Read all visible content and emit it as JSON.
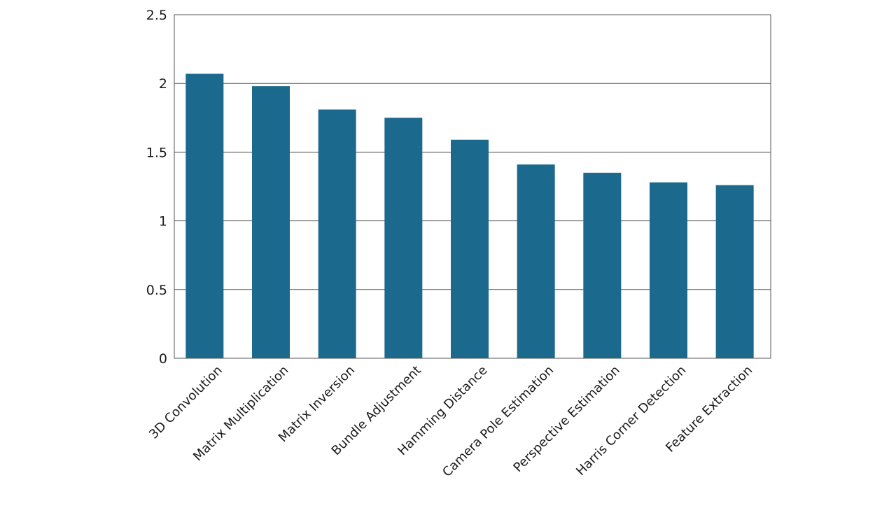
{
  "chart_data": {
    "type": "bar",
    "categories": [
      "3D Convolution",
      "Matrix Multiplication",
      "Matrix Inversion",
      "Bundle Adjustment",
      "Hamming Distance",
      "Camera Pole Estimation",
      "Perspective Estimation",
      "Harris Corner Detection",
      "Feature Extraction"
    ],
    "values": [
      2.07,
      1.98,
      1.81,
      1.75,
      1.59,
      1.41,
      1.35,
      1.28,
      1.26
    ],
    "ylim": [
      0,
      2.5
    ],
    "yticks": [
      "0",
      "0.5",
      "1",
      "1.5",
      "2",
      "2.5"
    ],
    "title": "",
    "xlabel": "",
    "ylabel": "",
    "grid": true,
    "legend": "none",
    "bar_color": "#1b6a8e"
  }
}
